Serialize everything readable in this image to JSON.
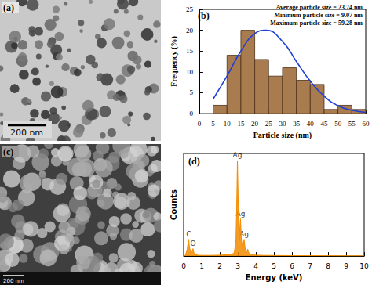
{
  "images": [
    {
      "panel": "(a)",
      "scale_bar": "200 nm"
    },
    {
      "panel": "(c)",
      "scale_bar": "200 nm"
    }
  ],
  "chart_data": [
    {
      "panel": "(b)",
      "type": "histogram",
      "bins": [
        5,
        10,
        15,
        20,
        25,
        30,
        35,
        40,
        45,
        50,
        55,
        60
      ],
      "counts": [
        2,
        14,
        20,
        13,
        9,
        11,
        8,
        7,
        1,
        2,
        1
      ],
      "color": "#a97c4f",
      "fit": {
        "type": "line",
        "color": "#1f3fd6",
        "x": [
          5,
          10,
          15,
          20,
          24,
          30,
          35,
          40,
          45,
          50,
          55,
          60
        ],
        "values": [
          3.5,
          9,
          15,
          19.2,
          20,
          17.3,
          12.5,
          7.8,
          4.2,
          1.9,
          0.8,
          0.3
        ]
      },
      "x_label": "Particle size (nm)",
      "y_label": "Frequency (%)",
      "xlim": [
        0,
        60
      ],
      "xticks": [
        0,
        5,
        10,
        15,
        20,
        25,
        30,
        35,
        40,
        45,
        50,
        55,
        60
      ],
      "ylim": [
        0,
        25
      ],
      "yticks": [
        0,
        5,
        10,
        15,
        20,
        25
      ],
      "grid": false,
      "annotations": [
        "Average particle size = 23.74 nm",
        "Minimum particle size = 9.07 nm",
        "Maximum particle size = 59.28 nm"
      ]
    },
    {
      "panel": "(d)",
      "type": "line",
      "color": "#f28c00",
      "x": [
        0,
        0.1,
        0.2,
        0.25,
        0.28,
        0.32,
        0.4,
        0.48,
        0.52,
        0.57,
        0.65,
        0.8,
        1.0,
        1.5,
        2.0,
        2.5,
        2.8,
        2.9,
        2.95,
        2.98,
        3.02,
        3.08,
        3.12,
        3.15,
        3.2,
        3.28,
        3.35,
        3.42,
        3.5,
        3.55,
        3.62,
        3.8,
        4.0,
        4.5,
        5,
        6,
        7,
        8,
        9,
        10
      ],
      "values": [
        0,
        40,
        300,
        600,
        720,
        400,
        120,
        250,
        320,
        150,
        60,
        40,
        30,
        30,
        40,
        60,
        120,
        700,
        2600,
        4100,
        2400,
        700,
        1300,
        1600,
        700,
        250,
        720,
        250,
        200,
        300,
        120,
        60,
        40,
        30,
        25,
        20,
        20,
        15,
        10,
        10
      ],
      "x_label": "Energy (keV)",
      "y_label": "Counts",
      "xlim": [
        0,
        10
      ],
      "xticks": [
        0,
        1,
        2,
        3,
        4,
        5,
        6,
        7,
        8,
        9,
        10
      ],
      "ylim": [
        0,
        4400
      ],
      "tick_labels": "x",
      "grid": false,
      "peaks": [
        {
          "label": "C",
          "x": 0.28,
          "y": 720
        },
        {
          "label": "O",
          "x": 0.52,
          "y": 320
        },
        {
          "label": "Ag",
          "x": 2.98,
          "y": 4100
        },
        {
          "label": "Ag",
          "x": 3.15,
          "y": 1600
        },
        {
          "label": "Ag",
          "x": 3.35,
          "y": 720
        }
      ]
    }
  ]
}
